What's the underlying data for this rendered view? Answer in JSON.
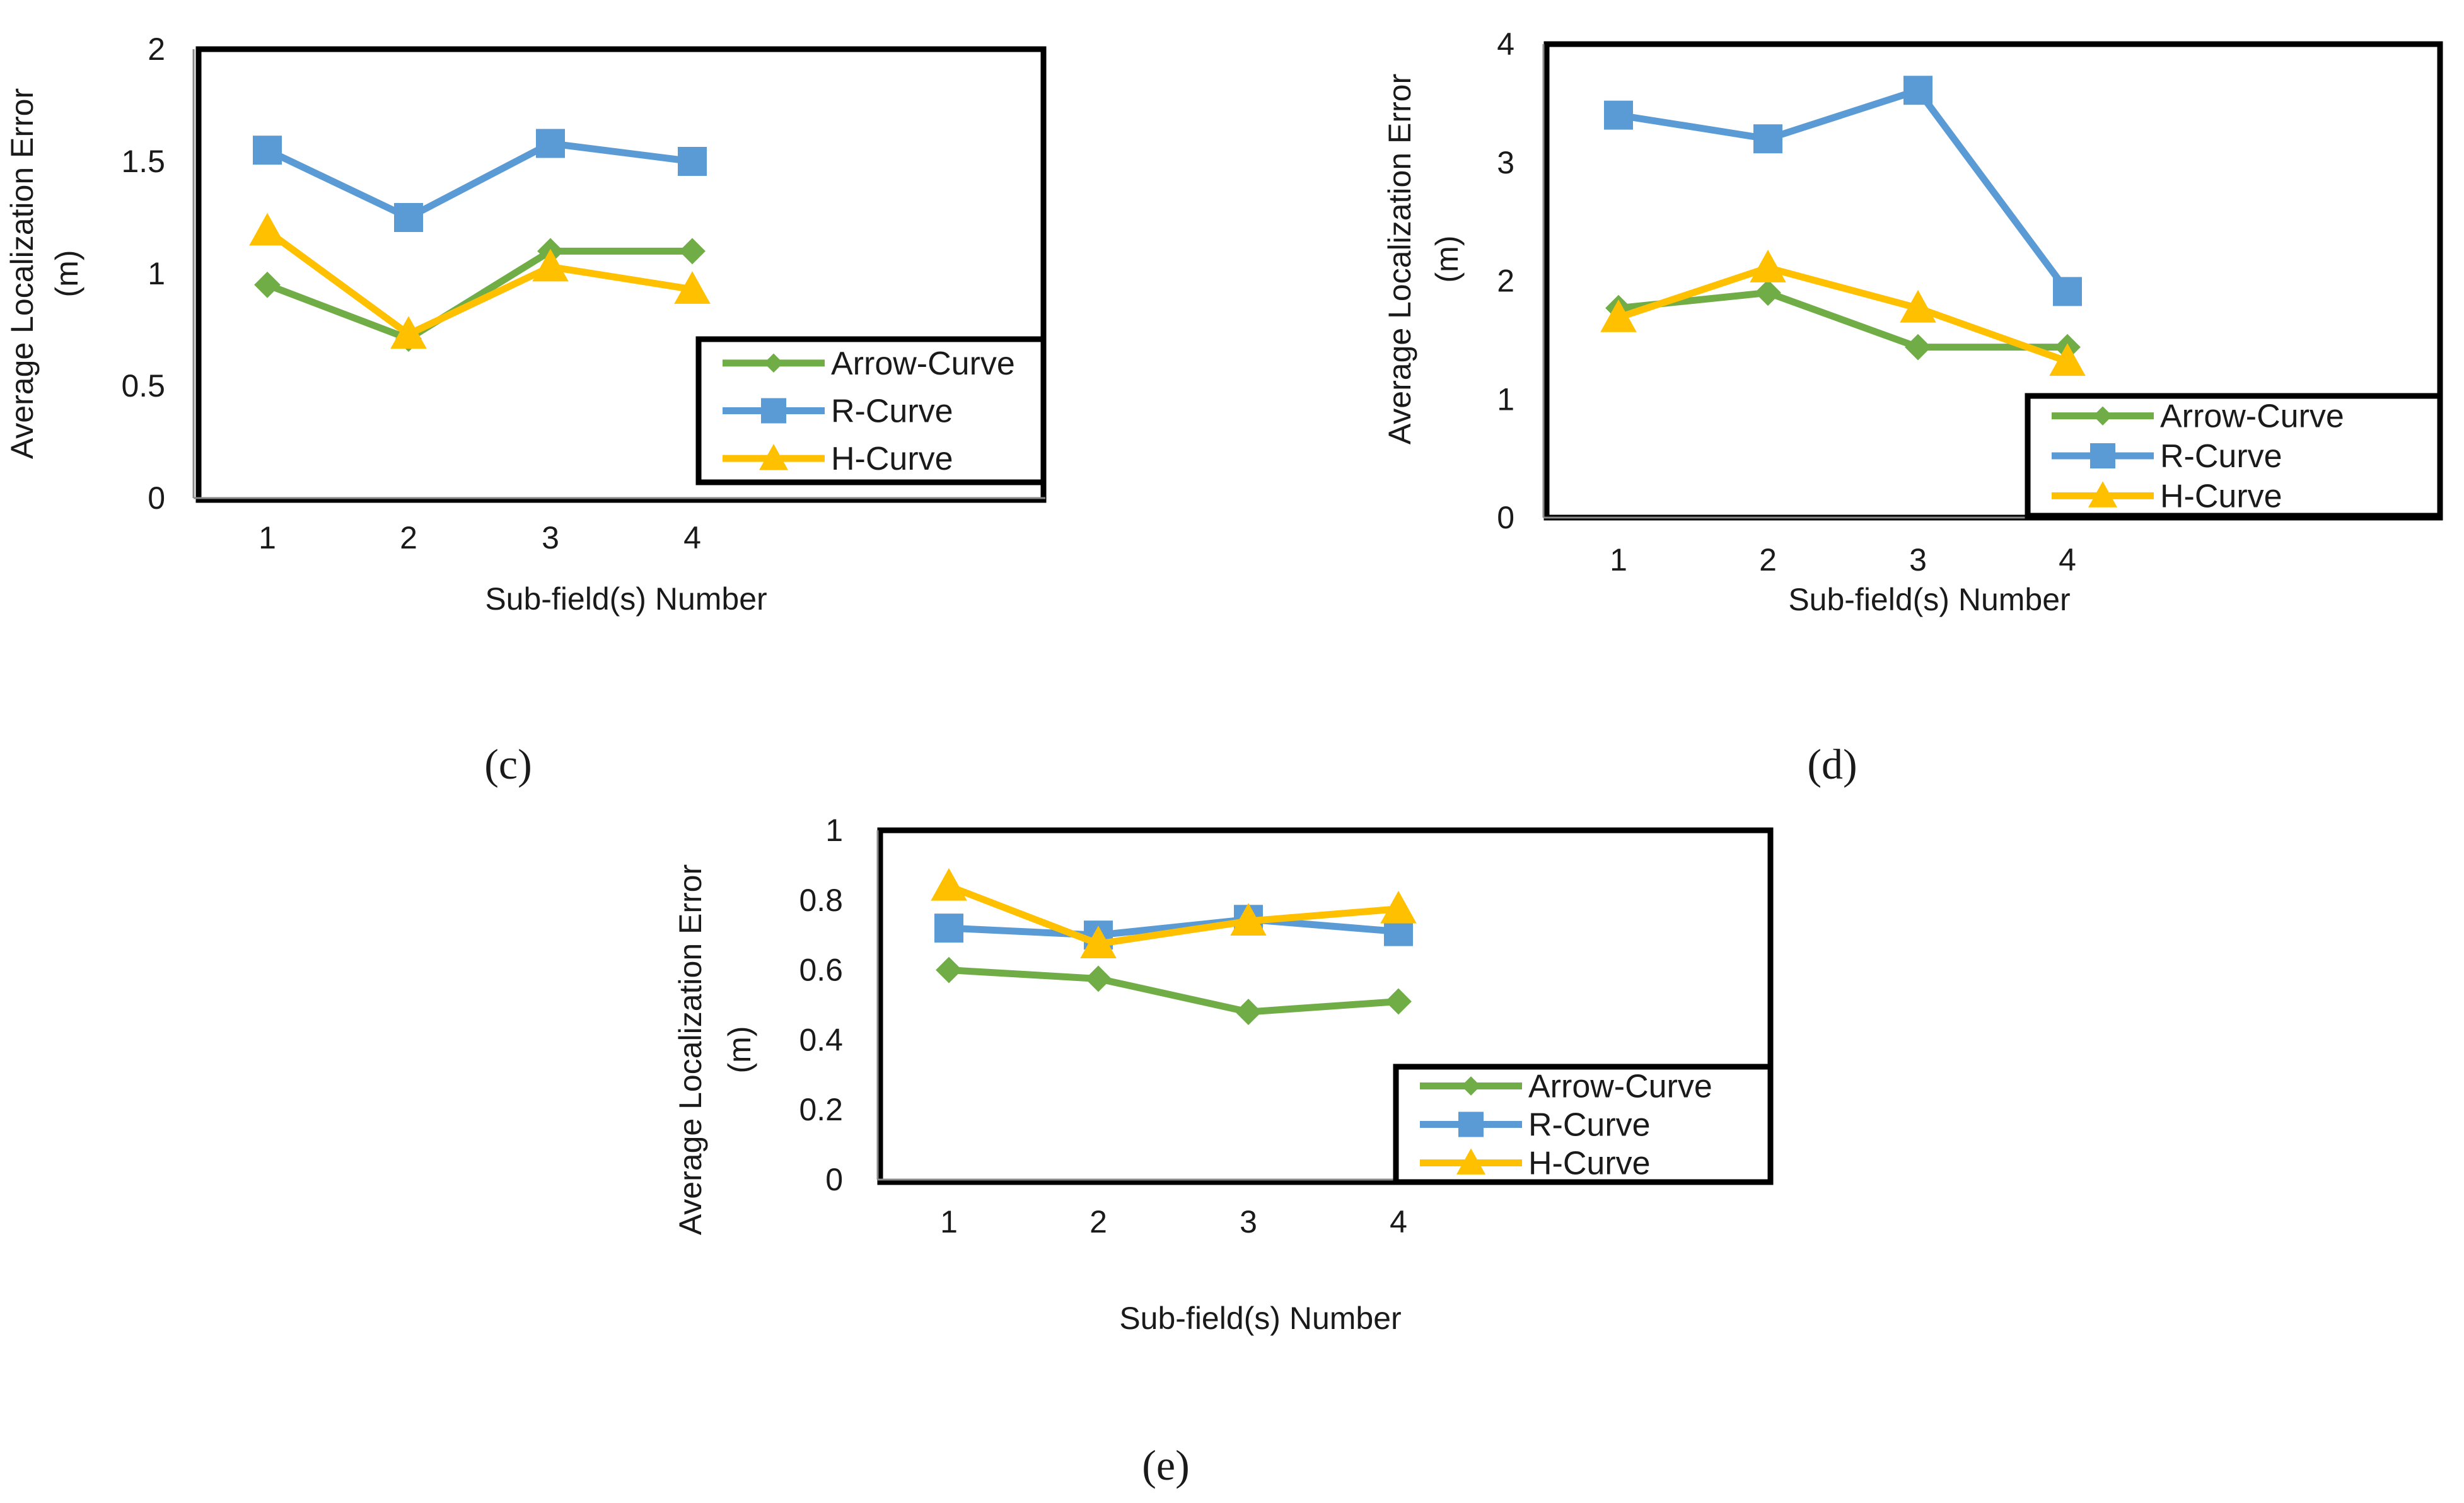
{
  "chart_data": [
    {
      "panel": "(c)",
      "type": "line",
      "categories": [
        "1",
        "2",
        "3",
        "4"
      ],
      "xlabel": "Sub-field(s) Number",
      "ylabel_lines": [
        "Average Localization Error",
        "(m)"
      ],
      "ylim": [
        0,
        2
      ],
      "yticks": [
        0,
        0.5,
        1,
        1.5,
        2
      ],
      "ytick_labels": [
        "0",
        "0.5",
        "1",
        "1.5",
        "2"
      ],
      "grid": false,
      "legend_position": "bottom-right",
      "series": [
        {
          "name": "Arrow-Curve",
          "color": "#70ad47",
          "marker": "diamond",
          "values": [
            0.95,
            0.71,
            1.1,
            1.1
          ]
        },
        {
          "name": "R-Curve",
          "color": "#5b9bd5",
          "marker": "square",
          "values": [
            1.55,
            1.25,
            1.58,
            1.5
          ]
        },
        {
          "name": "H-Curve",
          "color": "#ffc000",
          "marker": "triangle",
          "values": [
            1.19,
            0.73,
            1.03,
            0.93
          ]
        }
      ]
    },
    {
      "panel": "(d)",
      "type": "line",
      "categories": [
        "1",
        "2",
        "3",
        "4"
      ],
      "xlabel": "Sub-field(s) Number",
      "ylabel_lines": [
        "Average Localization Error",
        "(m)"
      ],
      "ylim": [
        0,
        4
      ],
      "yticks": [
        0,
        1,
        2,
        3,
        4
      ],
      "ytick_labels": [
        "0",
        "1",
        "2",
        "3",
        "4"
      ],
      "grid": false,
      "legend_position": "bottom-right",
      "series": [
        {
          "name": "Arrow-Curve",
          "color": "#70ad47",
          "marker": "diamond",
          "values": [
            1.77,
            1.9,
            1.44,
            1.44
          ]
        },
        {
          "name": "R-Curve",
          "color": "#5b9bd5",
          "marker": "square",
          "values": [
            3.4,
            3.2,
            3.61,
            1.91
          ]
        },
        {
          "name": "H-Curve",
          "color": "#ffc000",
          "marker": "triangle",
          "values": [
            1.69,
            2.11,
            1.77,
            1.32
          ]
        }
      ]
    },
    {
      "panel": "(e)",
      "type": "line",
      "categories": [
        "1",
        "2",
        "3",
        "4"
      ],
      "xlabel": "Sub-field(s) Number",
      "ylabel_lines": [
        "Average Localization Error",
        "(m)"
      ],
      "ylim": [
        0,
        1
      ],
      "yticks": [
        0,
        0.2,
        0.4,
        0.6,
        0.8,
        1
      ],
      "ytick_labels": [
        "0",
        "0.2",
        "0.4",
        "0.6",
        "0.8",
        "1"
      ],
      "grid": false,
      "legend_position": "bottom-right",
      "series": [
        {
          "name": "Arrow-Curve",
          "color": "#70ad47",
          "marker": "diamond",
          "values": [
            0.6,
            0.575,
            0.48,
            0.51
          ]
        },
        {
          "name": "R-Curve",
          "color": "#5b9bd5",
          "marker": "square",
          "values": [
            0.72,
            0.7,
            0.745,
            0.71
          ]
        },
        {
          "name": "H-Curve",
          "color": "#ffc000",
          "marker": "triangle",
          "values": [
            0.84,
            0.675,
            0.74,
            0.775
          ]
        }
      ]
    }
  ]
}
